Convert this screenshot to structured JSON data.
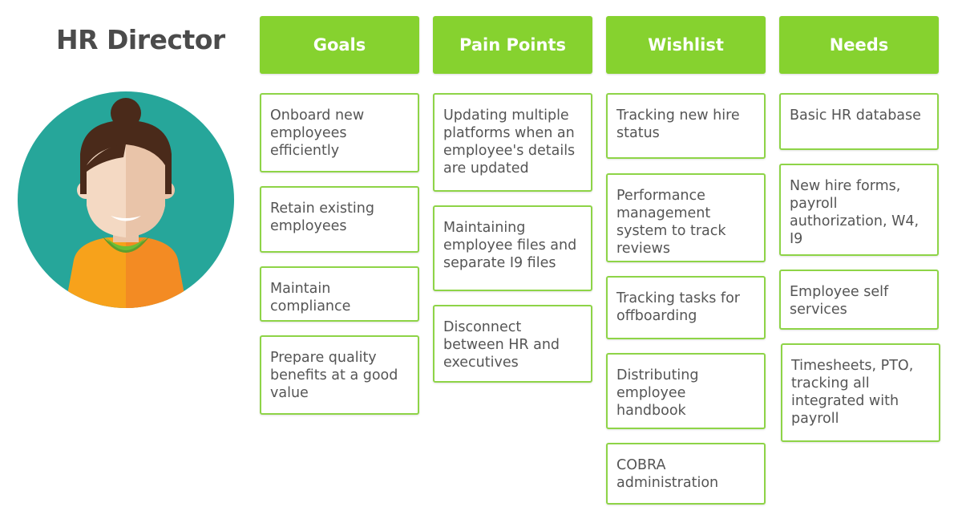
{
  "persona": {
    "title": "HR Director"
  },
  "columns": [
    {
      "header": "Goals",
      "items": [
        "Onboard new employees efficiently",
        "Retain existing employees",
        "Maintain compliance",
        "Prepare quality benefits at a good value"
      ]
    },
    {
      "header": "Pain Points",
      "items": [
        "Updating multiple platforms when an employee's details are updated",
        "Maintaining employee files and separate I9 files",
        "Disconnect between HR and executives"
      ]
    },
    {
      "header": "Wishlist",
      "items": [
        "Tracking new hire status",
        "Performance management system to track reviews",
        "Tracking tasks for offboarding",
        "Distributing employee handbook",
        "COBRA administration"
      ]
    },
    {
      "header": "Needs",
      "items": [
        "Basic HR database",
        "New hire forms, payroll authorization, W4, I9",
        "Employee self services",
        "Timesheets, PTO, tracking all integrated with payroll"
      ]
    }
  ],
  "colors": {
    "accent": "#86d22f",
    "avatar_bg": "#26a69a",
    "hair": "#4a2a1a",
    "shirt": "#f7a21b"
  }
}
